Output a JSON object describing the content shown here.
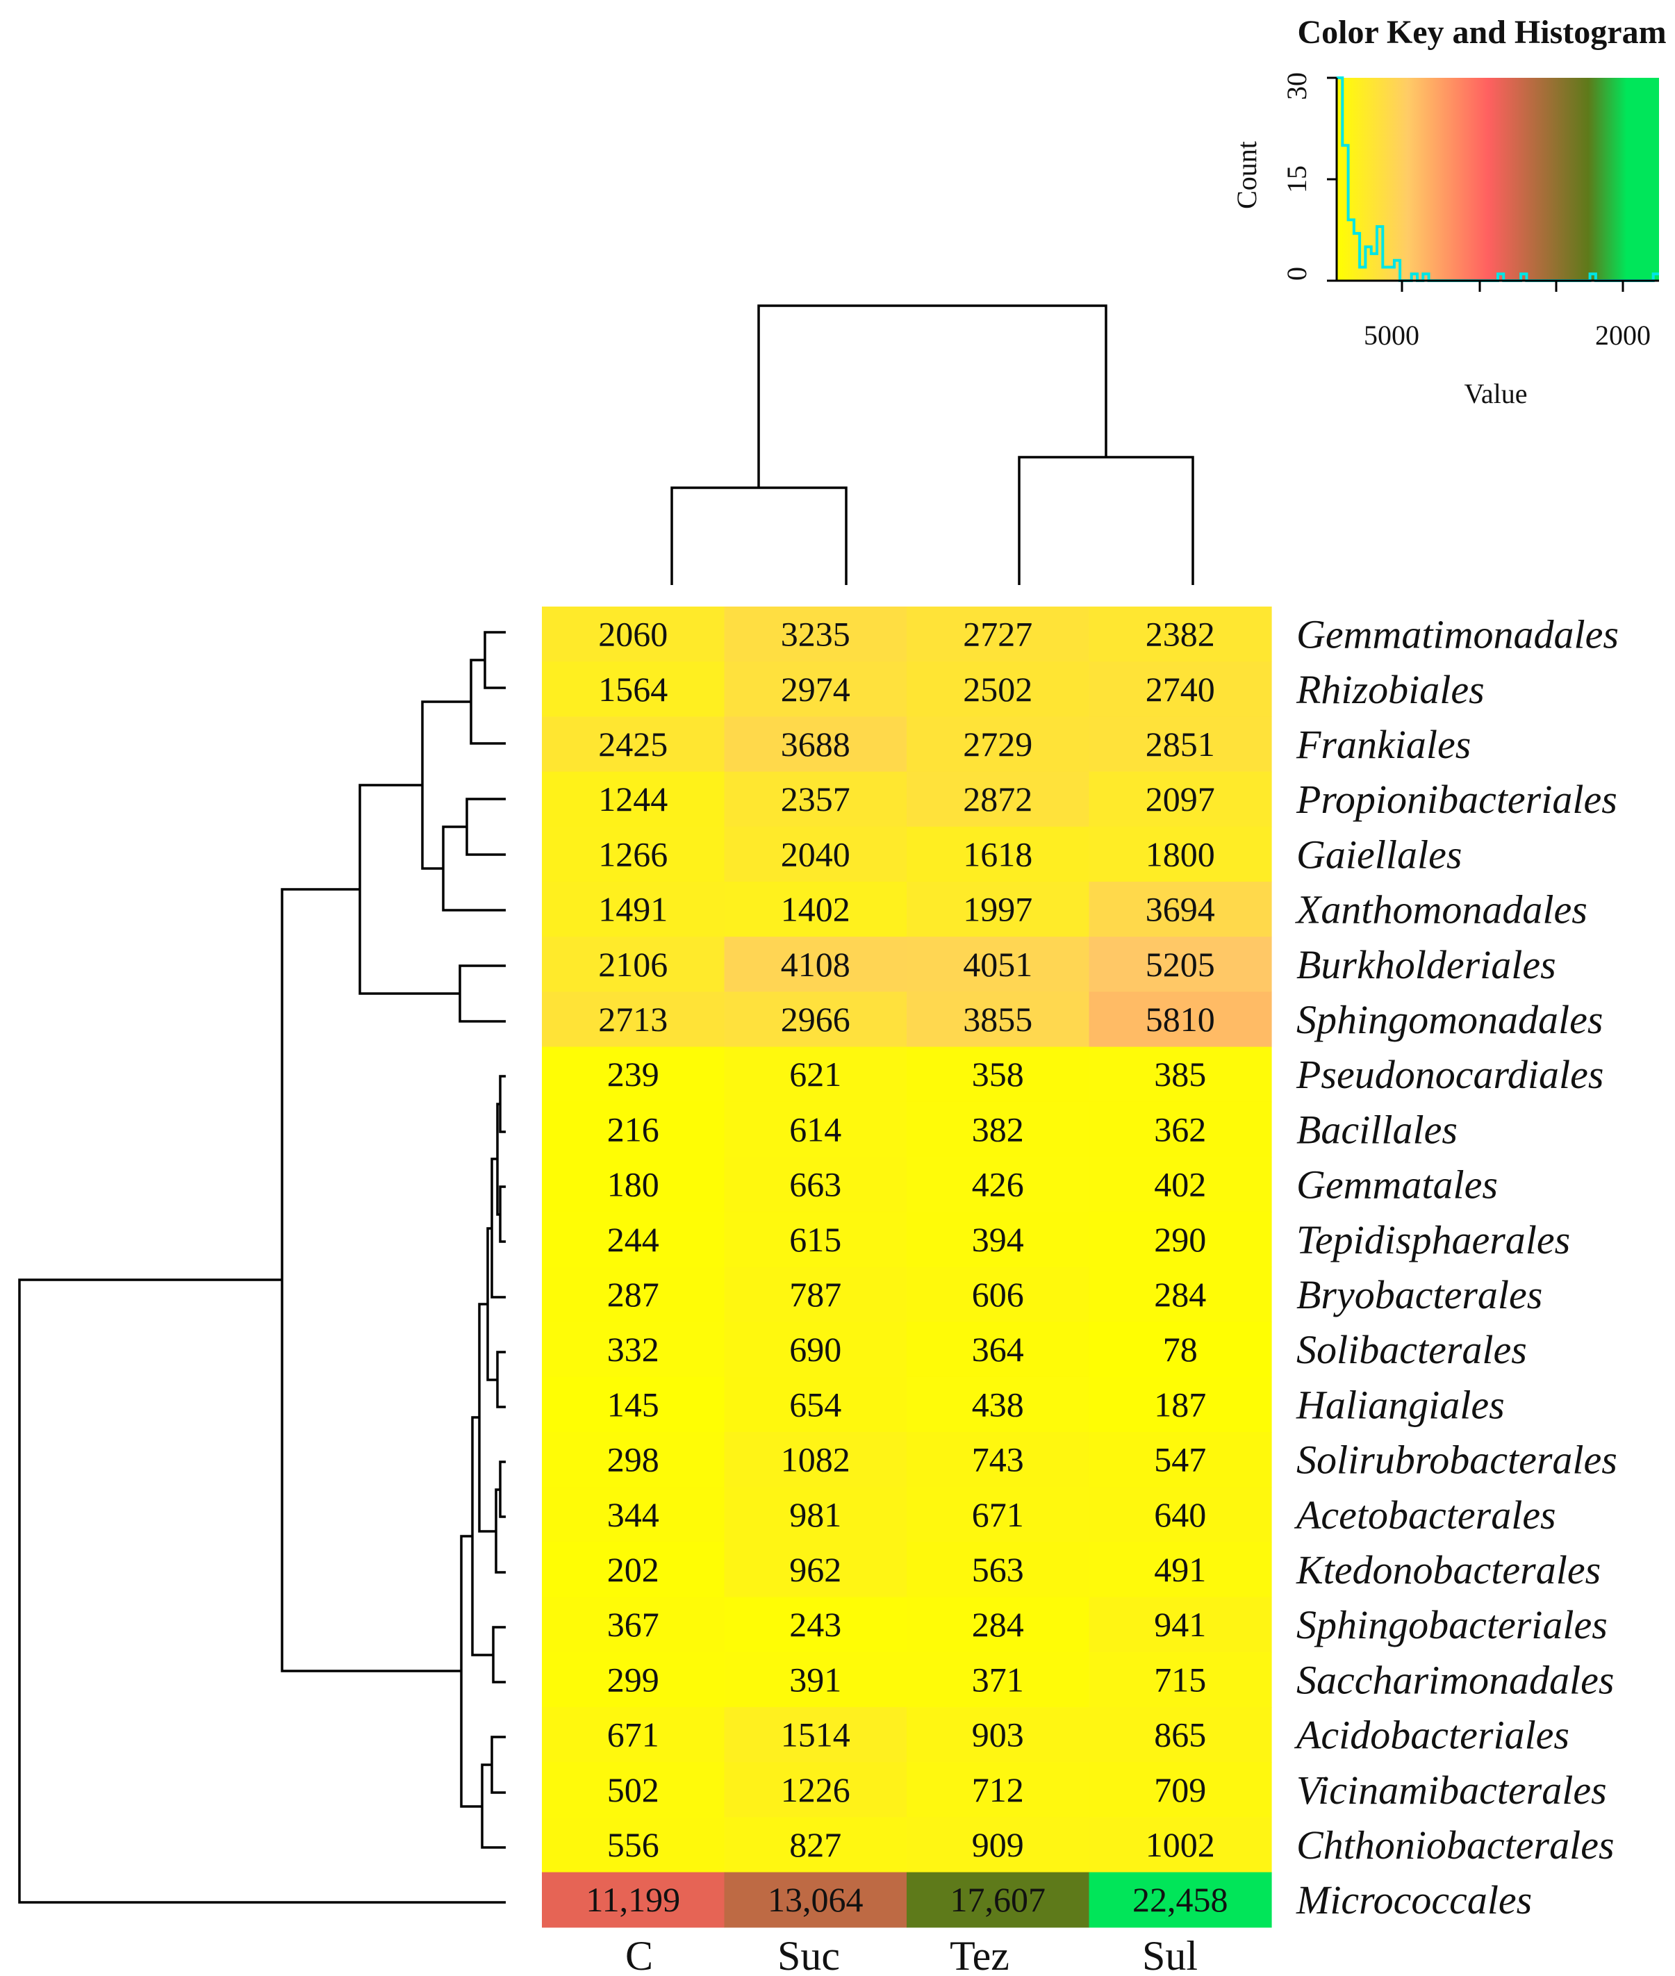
{
  "chart_data": {
    "type": "heatmap",
    "columns": [
      "C",
      "Suc",
      "Tez",
      "Sul"
    ],
    "rows": [
      {
        "label": "Gemmatimonadales",
        "values": [
          "2060",
          "3235",
          "2727",
          "2382"
        ]
      },
      {
        "label": "Rhizobiales",
        "values": [
          "1564",
          "2974",
          "2502",
          "2740"
        ]
      },
      {
        "label": "Frankiales",
        "values": [
          "2425",
          "3688",
          "2729",
          "2851"
        ]
      },
      {
        "label": "Propionibacteriales",
        "values": [
          "1244",
          "2357",
          "2872",
          "2097"
        ]
      },
      {
        "label": "Gaiellales",
        "values": [
          "1266",
          "2040",
          "1618",
          "1800"
        ]
      },
      {
        "label": "Xanthomonadales",
        "values": [
          "1491",
          "1402",
          "1997",
          "3694"
        ]
      },
      {
        "label": "Burkholderiales",
        "values": [
          "2106",
          "4108",
          "4051",
          "5205"
        ]
      },
      {
        "label": "Sphingomonadales",
        "values": [
          "2713",
          "2966",
          "3855",
          "5810"
        ]
      },
      {
        "label": "Pseudonocardiales",
        "values": [
          "239",
          "621",
          "358",
          "385"
        ]
      },
      {
        "label": "Bacillales",
        "values": [
          "216",
          "614",
          "382",
          "362"
        ]
      },
      {
        "label": "Gemmatales",
        "values": [
          "180",
          "663",
          "426",
          "402"
        ]
      },
      {
        "label": "Tepidisphaerales",
        "values": [
          "244",
          "615",
          "394",
          "290"
        ]
      },
      {
        "label": "Bryobacterales",
        "values": [
          "287",
          "787",
          "606",
          "284"
        ]
      },
      {
        "label": "Solibacterales",
        "values": [
          "332",
          "690",
          "364",
          "78"
        ]
      },
      {
        "label": "Haliangiales",
        "values": [
          "145",
          "654",
          "438",
          "187"
        ]
      },
      {
        "label": "Solirubrobacterales",
        "values": [
          "298",
          "1082",
          "743",
          "547"
        ]
      },
      {
        "label": "Acetobacterales",
        "values": [
          "344",
          "981",
          "671",
          "640"
        ]
      },
      {
        "label": "Ktedonobacterales",
        "values": [
          "202",
          "962",
          "563",
          "491"
        ]
      },
      {
        "label": "Sphingobacteriales",
        "values": [
          "367",
          "243",
          "284",
          "941"
        ]
      },
      {
        "label": "Saccharimonadales",
        "values": [
          "299",
          "391",
          "371",
          "715"
        ]
      },
      {
        "label": "Acidobacteriales",
        "values": [
          "671",
          "1514",
          "903",
          "865"
        ]
      },
      {
        "label": "Vicinamibacterales",
        "values": [
          "502",
          "1226",
          "712",
          "709"
        ]
      },
      {
        "label": "Chthoniobacterales",
        "values": [
          "556",
          "827",
          "909",
          "1002"
        ]
      },
      {
        "label": "Micrococcales",
        "values": [
          "11,199",
          "13,064",
          "17,607",
          "22,458"
        ]
      }
    ],
    "color_scale": {
      "stops": [
        "#ffff00",
        "#ffcc66",
        "#ff6060",
        "#5e7a1a",
        "#00e65a"
      ],
      "domain": [
        0,
        5000,
        10000,
        17600,
        22500
      ]
    },
    "color_key": {
      "title": "Color Key and Histogram",
      "ylabel": "Count",
      "xlabel": "Value",
      "yticks": [
        "0",
        "15",
        "30"
      ],
      "xticks": [
        "5000",
        "2000"
      ],
      "histogram": [
        30,
        20,
        9,
        7,
        2,
        5,
        4,
        8,
        2,
        2,
        3,
        0,
        0,
        1,
        0,
        1,
        0,
        0,
        0,
        0,
        0,
        0,
        0,
        0,
        0,
        0,
        0,
        0,
        1,
        0,
        0,
        0,
        1,
        0,
        0,
        0,
        0,
        0,
        0,
        0,
        0,
        0,
        0,
        0,
        1,
        0,
        0,
        0,
        0,
        0,
        0,
        0,
        0,
        0,
        0,
        1
      ],
      "histogram_color": "#00e5e5"
    }
  }
}
